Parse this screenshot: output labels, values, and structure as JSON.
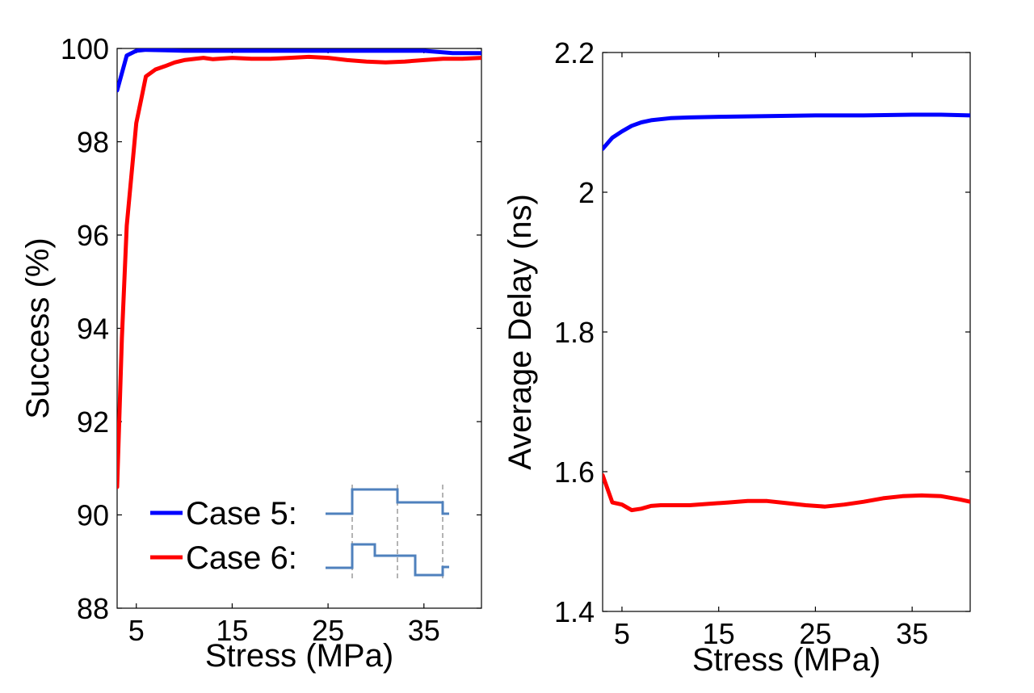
{
  "chart_data": [
    {
      "type": "line",
      "xlabel": "Stress (MPa)",
      "ylabel": "Success (%)",
      "xlim": [
        3,
        41
      ],
      "ylim": [
        88,
        100
      ],
      "xticks": [
        5,
        15,
        25,
        35
      ],
      "yticks": [
        88,
        90,
        92,
        94,
        96,
        98,
        100
      ],
      "legend": {
        "position": "bottom-left",
        "entries": [
          {
            "label": "Case 5:",
            "color": "#0000ff"
          },
          {
            "label": "Case 6:",
            "color": "#ff0000"
          }
        ]
      },
      "series": [
        {
          "name": "Case 5",
          "color": "#0000ff",
          "x": [
            3,
            4,
            5,
            6,
            8,
            10,
            15,
            20,
            25,
            30,
            35,
            38,
            41
          ],
          "y": [
            99.1,
            99.85,
            99.95,
            99.97,
            99.96,
            99.95,
            99.95,
            99.95,
            99.95,
            99.95,
            99.95,
            99.9,
            99.9
          ]
        },
        {
          "name": "Case 6",
          "color": "#ff0000",
          "x": [
            3,
            3.5,
            4,
            4.5,
            5,
            5.5,
            6,
            7,
            8,
            9,
            10,
            12,
            13,
            15,
            17,
            19,
            21,
            23,
            25,
            27,
            29,
            31,
            33,
            35,
            37,
            39,
            41
          ],
          "y": [
            90.6,
            93.8,
            96.2,
            97.3,
            98.4,
            98.9,
            99.4,
            99.55,
            99.62,
            99.7,
            99.75,
            99.8,
            99.77,
            99.8,
            99.78,
            99.78,
            99.8,
            99.82,
            99.8,
            99.75,
            99.72,
            99.7,
            99.72,
            99.75,
            99.78,
            99.78,
            99.8
          ]
        }
      ]
    },
    {
      "type": "line",
      "xlabel": "Stress (MPa)",
      "ylabel": "Average Delay (ns)",
      "xlim": [
        3,
        41
      ],
      "ylim": [
        1.4,
        2.2
      ],
      "xticks": [
        5,
        15,
        25,
        35
      ],
      "yticks": [
        1.4,
        1.6,
        1.8,
        2.0,
        2.2
      ],
      "ytick_labels": [
        "1.4",
        "1.6",
        "1.8",
        "2",
        "2.2"
      ],
      "series": [
        {
          "name": "Case 5",
          "color": "#0000ff",
          "x": [
            3,
            4,
            5,
            6,
            7,
            8,
            10,
            12,
            15,
            20,
            25,
            30,
            35,
            38,
            41
          ],
          "y": [
            2.062,
            2.078,
            2.087,
            2.095,
            2.1,
            2.103,
            2.106,
            2.107,
            2.108,
            2.109,
            2.11,
            2.11,
            2.111,
            2.111,
            2.11
          ]
        },
        {
          "name": "Case 6",
          "color": "#ff0000",
          "x": [
            3,
            4,
            5,
            6,
            7,
            8,
            9,
            10,
            12,
            14,
            16,
            18,
            20,
            22,
            24,
            26,
            28,
            30,
            32,
            34,
            36,
            38,
            40,
            41
          ],
          "y": [
            1.595,
            1.556,
            1.553,
            1.545,
            1.547,
            1.551,
            1.552,
            1.552,
            1.552,
            1.554,
            1.556,
            1.558,
            1.558,
            1.555,
            1.552,
            1.55,
            1.553,
            1.557,
            1.562,
            1.565,
            1.566,
            1.565,
            1.56,
            1.557
          ]
        }
      ]
    }
  ]
}
